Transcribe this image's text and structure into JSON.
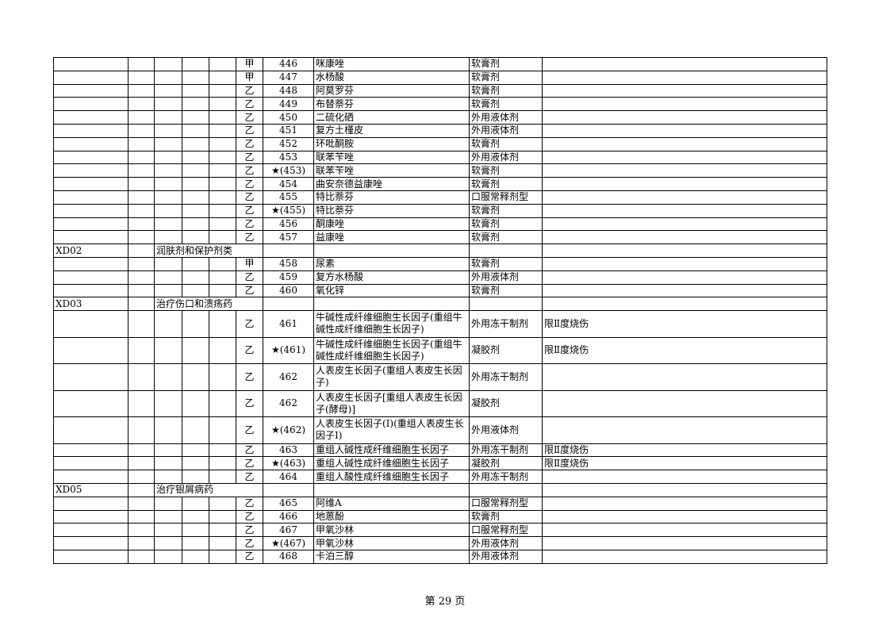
{
  "rows": [
    {
      "grade": "甲",
      "num": "446",
      "name": "咪康唑",
      "form": "软膏剂",
      "note": ""
    },
    {
      "grade": "甲",
      "num": "447",
      "name": "水杨酸",
      "form": "软膏剂",
      "note": ""
    },
    {
      "grade": "乙",
      "num": "448",
      "name": "阿莫罗芬",
      "form": "软膏剂",
      "note": ""
    },
    {
      "grade": "乙",
      "num": "449",
      "name": "布替萘芬",
      "form": "软膏剂",
      "note": ""
    },
    {
      "grade": "乙",
      "num": "450",
      "name": "二硫化硒",
      "form": "外用液体剂",
      "note": ""
    },
    {
      "grade": "乙",
      "num": "451",
      "name": "复方土槿皮",
      "form": "外用液体剂",
      "note": ""
    },
    {
      "grade": "乙",
      "num": "452",
      "name": "环吡酮胺",
      "form": "软膏剂",
      "note": ""
    },
    {
      "grade": "乙",
      "num": "453",
      "name": "联苯苄唑",
      "form": "外用液体剂",
      "note": ""
    },
    {
      "grade": "乙",
      "num": "★(453)",
      "name": "联苯苄唑",
      "form": "软膏剂",
      "note": ""
    },
    {
      "grade": "乙",
      "num": "454",
      "name": "曲安奈德益康唑",
      "form": "软膏剂",
      "note": ""
    },
    {
      "grade": "乙",
      "num": "455",
      "name": "特比萘芬",
      "form": "口服常释剂型",
      "note": ""
    },
    {
      "grade": "乙",
      "num": "★(455)",
      "name": "特比萘芬",
      "form": "软膏剂",
      "note": ""
    },
    {
      "grade": "乙",
      "num": "456",
      "name": "酮康唑",
      "form": "软膏剂",
      "note": ""
    },
    {
      "grade": "乙",
      "num": "457",
      "name": "益康唑",
      "form": "软膏剂",
      "note": ""
    },
    {
      "category": true,
      "code": "XD02",
      "title": "润肤剂和保护剂类"
    },
    {
      "grade": "甲",
      "num": "458",
      "name": "尿素",
      "form": "软膏剂",
      "note": ""
    },
    {
      "grade": "乙",
      "num": "459",
      "name": "复方水杨酸",
      "form": "外用液体剂",
      "note": ""
    },
    {
      "grade": "乙",
      "num": "460",
      "name": "氧化锌",
      "form": "软膏剂",
      "note": ""
    },
    {
      "category": true,
      "code": "XD03",
      "title": "治疗伤口和溃疡药"
    },
    {
      "tall": true,
      "grade": "乙",
      "num": "461",
      "name": "牛碱性成纤维细胞生长因子(重组牛碱性成纤维细胞生长因子)",
      "form": "外用冻干制剂",
      "note": "限Ⅱ度烧伤"
    },
    {
      "tall": true,
      "grade": "乙",
      "num": "★(461)",
      "name": "牛碱性成纤维细胞生长因子(重组牛碱性成纤维细胞生长因子)",
      "form": "凝胶剂",
      "note": "限Ⅱ度烧伤"
    },
    {
      "tall": true,
      "grade": "乙",
      "num": "462",
      "name": "人表皮生长因子(重组人表皮生长因子)",
      "form": "外用冻干制剂",
      "note": ""
    },
    {
      "tall": true,
      "grade": "乙",
      "num": "462",
      "name": "人表皮生长因子[重组人表皮生长因子(酵母)]",
      "form": "凝胶剂",
      "note": ""
    },
    {
      "tall": true,
      "grade": "乙",
      "num": "★(462)",
      "name": "人表皮生长因子(Ⅰ)(重组人表皮生长因子Ⅰ)",
      "form": "外用液体剂",
      "note": ""
    },
    {
      "grade": "乙",
      "num": "463",
      "name": "重组人碱性成纤维细胞生长因子",
      "form": "外用冻干制剂",
      "note": "限Ⅱ度烧伤"
    },
    {
      "grade": "乙",
      "num": "★(463)",
      "name": "重组人碱性成纤维细胞生长因子",
      "form": "凝胶剂",
      "note": "限Ⅱ度烧伤"
    },
    {
      "grade": "乙",
      "num": "464",
      "name": "重组人酸性成纤维细胞生长因子",
      "form": "外用冻干制剂",
      "note": ""
    },
    {
      "category": true,
      "code": "XD05",
      "title": "治疗银屑病药"
    },
    {
      "grade": "乙",
      "num": "465",
      "name": "阿维A",
      "form": "口服常释剂型",
      "note": ""
    },
    {
      "grade": "乙",
      "num": "466",
      "name": "地蒽酚",
      "form": "软膏剂",
      "note": ""
    },
    {
      "grade": "乙",
      "num": "467",
      "name": "甲氧沙林",
      "form": "口服常释剂型",
      "note": ""
    },
    {
      "grade": "乙",
      "num": "★(467)",
      "name": "甲氧沙林",
      "form": "外用液体剂",
      "note": ""
    },
    {
      "grade": "乙",
      "num": "468",
      "name": "卡泊三醇",
      "form": "外用液体剂",
      "note": ""
    }
  ],
  "footer": "第 29 页"
}
